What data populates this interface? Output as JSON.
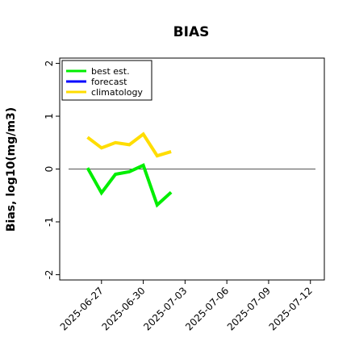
{
  "chart_data": {
    "type": "line",
    "title": "BIAS",
    "ylabel": "Bias, log10(mg/m3)",
    "xlabel": "",
    "xlim": [
      "2025-06-24",
      "2025-07-13"
    ],
    "ylim": [
      -2.1,
      2.1
    ],
    "yticks": [
      -2,
      -1,
      0,
      1,
      2
    ],
    "ytick_labels": [
      "-2",
      "-1",
      "0",
      "1",
      "2"
    ],
    "xticks": [
      "2025-06-27",
      "2025-06-30",
      "2025-07-03",
      "2025-07-06",
      "2025-07-09",
      "2025-07-12"
    ],
    "xtick_labels": [
      "2025-06-27",
      "2025-06-30",
      "2025-07-03",
      "2025-07-06",
      "2025-07-09",
      "2025-07-12"
    ],
    "highlight_tick": "2025-07-03",
    "highlight_color": "#228b22",
    "reference_line": 0,
    "legend_position": "top-left",
    "grid": false,
    "series": [
      {
        "name": "best est.",
        "color": "#00ee00",
        "x": [
          "2025-06-26",
          "2025-06-27",
          "2025-06-28",
          "2025-06-29",
          "2025-06-30",
          "2025-07-01",
          "2025-07-02"
        ],
        "values": [
          0.02,
          -0.45,
          -0.1,
          -0.05,
          0.07,
          -0.68,
          -0.44
        ]
      },
      {
        "name": "forecast",
        "color": "#0000ff",
        "x": [],
        "values": []
      },
      {
        "name": "climatology",
        "color": "#ffdd00",
        "x": [
          "2025-06-26",
          "2025-06-27",
          "2025-06-28",
          "2025-06-29",
          "2025-06-30",
          "2025-07-01",
          "2025-07-02"
        ],
        "values": [
          0.6,
          0.4,
          0.5,
          0.46,
          0.66,
          0.25,
          0.33
        ]
      }
    ]
  }
}
